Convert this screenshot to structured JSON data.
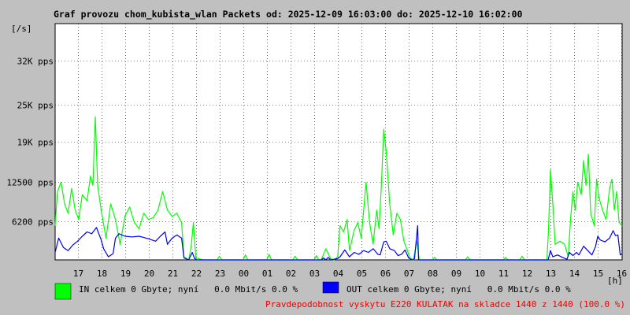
{
  "chart_data": {
    "type": "area",
    "title": "Graf provozu chom_kubista_wlan Packets od: 2025-12-09 16:03:00 do: 2025-12-10 16:02:00",
    "ylabel": "[/s]",
    "xlabel": "[h]",
    "ylim": [
      0,
      38000
    ],
    "grid": true,
    "y_ticks": [
      {
        "value": 6200,
        "label": "6200 pps"
      },
      {
        "value": 12500,
        "label": "12500 pps"
      },
      {
        "value": 19000,
        "label": "19K pps"
      },
      {
        "value": 25000,
        "label": "25K pps"
      },
      {
        "value": 32000,
        "label": "32K pps"
      }
    ],
    "x_ticks": [
      "17",
      "18",
      "19",
      "20",
      "21",
      "22",
      "23",
      "00",
      "01",
      "02",
      "03",
      "04",
      "05",
      "06",
      "07",
      "08",
      "09",
      "10",
      "11",
      "12",
      "13",
      "14",
      "15",
      "16"
    ],
    "x_range_hours": [
      16.05,
      40.03
    ],
    "series": [
      {
        "name": "IN",
        "color": "#00ff00",
        "points": [
          [
            16.05,
            5500
          ],
          [
            16.15,
            11000
          ],
          [
            16.3,
            12500
          ],
          [
            16.45,
            9000
          ],
          [
            16.6,
            7500
          ],
          [
            16.75,
            11500
          ],
          [
            16.9,
            8000
          ],
          [
            17.05,
            6500
          ],
          [
            17.2,
            10500
          ],
          [
            17.4,
            9500
          ],
          [
            17.55,
            13500
          ],
          [
            17.65,
            12000
          ],
          [
            17.75,
            23000
          ],
          [
            17.85,
            12000
          ],
          [
            18.0,
            8000
          ],
          [
            18.2,
            3500
          ],
          [
            18.4,
            9000
          ],
          [
            18.6,
            6500
          ],
          [
            18.8,
            2500
          ],
          [
            19.0,
            7000
          ],
          [
            19.2,
            8500
          ],
          [
            19.4,
            6000
          ],
          [
            19.6,
            5000
          ],
          [
            19.8,
            7500
          ],
          [
            20.0,
            6500
          ],
          [
            20.2,
            6800
          ],
          [
            20.4,
            8000
          ],
          [
            20.6,
            11000
          ],
          [
            20.8,
            8000
          ],
          [
            21.0,
            7000
          ],
          [
            21.2,
            7500
          ],
          [
            21.4,
            6000
          ],
          [
            21.5,
            500
          ],
          [
            21.7,
            0
          ],
          [
            21.8,
            2000
          ],
          [
            21.9,
            6000
          ],
          [
            22.0,
            300
          ],
          [
            22.3,
            0
          ],
          [
            22.9,
            0
          ],
          [
            23.0,
            600
          ],
          [
            23.1,
            0
          ],
          [
            24.0,
            0
          ],
          [
            24.1,
            800
          ],
          [
            24.2,
            0
          ],
          [
            25.0,
            0
          ],
          [
            25.1,
            900
          ],
          [
            25.2,
            0
          ],
          [
            26.1,
            0
          ],
          [
            26.2,
            600
          ],
          [
            26.3,
            0
          ],
          [
            27.0,
            0
          ],
          [
            27.1,
            700
          ],
          [
            27.2,
            0
          ],
          [
            27.3,
            0
          ],
          [
            27.5,
            1800
          ],
          [
            27.7,
            200
          ],
          [
            27.85,
            0
          ],
          [
            28.0,
            500
          ],
          [
            28.1,
            5500
          ],
          [
            28.25,
            4500
          ],
          [
            28.4,
            6500
          ],
          [
            28.5,
            1500
          ],
          [
            28.7,
            4800
          ],
          [
            28.85,
            6000
          ],
          [
            29.0,
            3500
          ],
          [
            29.2,
            12500
          ],
          [
            29.35,
            6000
          ],
          [
            29.5,
            2500
          ],
          [
            29.65,
            8000
          ],
          [
            29.75,
            5000
          ],
          [
            29.85,
            12000
          ],
          [
            29.95,
            21000
          ],
          [
            30.05,
            17500
          ],
          [
            30.2,
            9000
          ],
          [
            30.35,
            4000
          ],
          [
            30.5,
            7500
          ],
          [
            30.65,
            6500
          ],
          [
            30.8,
            3000
          ],
          [
            30.95,
            1500
          ],
          [
            31.05,
            300
          ],
          [
            31.2,
            0
          ],
          [
            31.35,
            3000
          ],
          [
            31.45,
            0
          ],
          [
            32.0,
            0
          ],
          [
            32.1,
            400
          ],
          [
            32.2,
            0
          ],
          [
            33.4,
            0
          ],
          [
            33.5,
            500
          ],
          [
            33.6,
            0
          ],
          [
            35.0,
            0
          ],
          [
            35.1,
            400
          ],
          [
            35.2,
            0
          ],
          [
            35.7,
            0
          ],
          [
            35.8,
            600
          ],
          [
            35.9,
            0
          ],
          [
            36.85,
            0
          ],
          [
            36.92,
            5000
          ],
          [
            37.0,
            14500
          ],
          [
            37.1,
            9000
          ],
          [
            37.2,
            2500
          ],
          [
            37.4,
            3000
          ],
          [
            37.6,
            2500
          ],
          [
            37.75,
            500
          ],
          [
            37.85,
            6500
          ],
          [
            37.95,
            11000
          ],
          [
            38.05,
            8000
          ],
          [
            38.15,
            12500
          ],
          [
            38.3,
            10500
          ],
          [
            38.4,
            16000
          ],
          [
            38.5,
            12000
          ],
          [
            38.6,
            17000
          ],
          [
            38.7,
            7500
          ],
          [
            38.85,
            5500
          ],
          [
            38.95,
            13000
          ],
          [
            39.05,
            10000
          ],
          [
            39.2,
            8000
          ],
          [
            39.35,
            6500
          ],
          [
            39.5,
            11500
          ],
          [
            39.6,
            13000
          ],
          [
            39.7,
            8000
          ],
          [
            39.8,
            11000
          ],
          [
            39.9,
            6000
          ],
          [
            40.03,
            5500
          ]
        ]
      },
      {
        "name": "OUT",
        "color": "#0000ff",
        "points": [
          [
            16.05,
            1200
          ],
          [
            16.2,
            3500
          ],
          [
            16.4,
            2000
          ],
          [
            16.6,
            1500
          ],
          [
            16.8,
            2400
          ],
          [
            17.0,
            3000
          ],
          [
            17.2,
            3800
          ],
          [
            17.4,
            4500
          ],
          [
            17.6,
            4200
          ],
          [
            17.8,
            5200
          ],
          [
            18.0,
            3200
          ],
          [
            18.1,
            1800
          ],
          [
            18.3,
            500
          ],
          [
            18.5,
            1000
          ],
          [
            18.6,
            3500
          ],
          [
            18.75,
            4200
          ],
          [
            19.0,
            3800
          ],
          [
            19.3,
            3700
          ],
          [
            19.6,
            3800
          ],
          [
            19.8,
            3600
          ],
          [
            20.0,
            3400
          ],
          [
            20.3,
            3000
          ],
          [
            20.5,
            3800
          ],
          [
            20.7,
            4500
          ],
          [
            20.8,
            2500
          ],
          [
            21.0,
            3500
          ],
          [
            21.2,
            4000
          ],
          [
            21.4,
            3500
          ],
          [
            21.5,
            300
          ],
          [
            21.7,
            0
          ],
          [
            21.85,
            1200
          ],
          [
            21.95,
            200
          ],
          [
            22.05,
            0
          ],
          [
            27.3,
            0
          ],
          [
            27.4,
            300
          ],
          [
            27.5,
            0
          ],
          [
            27.6,
            400
          ],
          [
            27.7,
            0
          ],
          [
            28.0,
            200
          ],
          [
            28.1,
            500
          ],
          [
            28.3,
            1600
          ],
          [
            28.5,
            500
          ],
          [
            28.7,
            1200
          ],
          [
            28.9,
            900
          ],
          [
            29.1,
            1500
          ],
          [
            29.3,
            1200
          ],
          [
            29.5,
            1800
          ],
          [
            29.7,
            900
          ],
          [
            29.8,
            800
          ],
          [
            29.95,
            2900
          ],
          [
            30.05,
            3000
          ],
          [
            30.2,
            1800
          ],
          [
            30.4,
            1500
          ],
          [
            30.55,
            700
          ],
          [
            30.7,
            900
          ],
          [
            30.85,
            1600
          ],
          [
            31.0,
            300
          ],
          [
            31.15,
            0
          ],
          [
            31.25,
            200
          ],
          [
            31.38,
            5500
          ],
          [
            31.42,
            0
          ],
          [
            32.0,
            0
          ],
          [
            36.9,
            0
          ],
          [
            37.0,
            1500
          ],
          [
            37.1,
            500
          ],
          [
            37.3,
            800
          ],
          [
            37.5,
            400
          ],
          [
            37.7,
            100
          ],
          [
            37.8,
            1200
          ],
          [
            37.95,
            700
          ],
          [
            38.1,
            1200
          ],
          [
            38.2,
            800
          ],
          [
            38.4,
            2200
          ],
          [
            38.6,
            1400
          ],
          [
            38.75,
            800
          ],
          [
            38.9,
            2100
          ],
          [
            39.0,
            3800
          ],
          [
            39.1,
            3200
          ],
          [
            39.3,
            2900
          ],
          [
            39.5,
            3500
          ],
          [
            39.65,
            4700
          ],
          [
            39.75,
            3900
          ],
          [
            39.85,
            4000
          ],
          [
            39.95,
            800
          ],
          [
            40.03,
            1000
          ]
        ]
      }
    ]
  },
  "legend": {
    "in": {
      "text": "IN celkem 0 Gbyte; nyní   0.0 Mbit/s 0.0 %",
      "color": "#00ff00"
    },
    "out": {
      "text": "OUT celkem 0 Gbyte; nyní   0.0 Mbit/s 0.0 %",
      "color": "#0000ff"
    }
  },
  "footer": {
    "text": "Pravdepodobnost vyskytu E220 KULATAK na skladce 1440 z 1440 (100.0 %)",
    "color": "#ee0000"
  }
}
